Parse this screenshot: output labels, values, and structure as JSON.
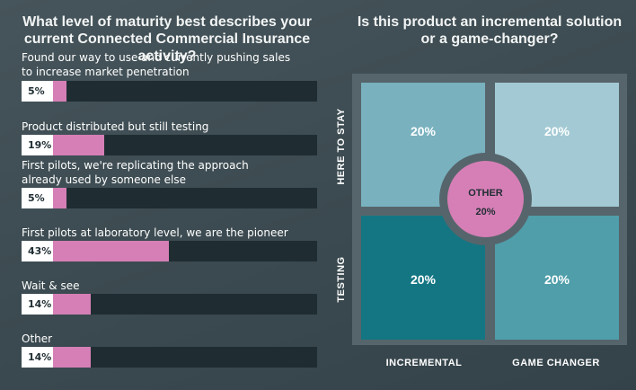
{
  "colors": {
    "background": "#3f4e54",
    "bar_fill": "#d67fb6",
    "bar_track": "#1f2d32",
    "value_box": "#ffffff",
    "quadrant_top_left": "#79b1bf",
    "quadrant_top_right": "#a3cad4",
    "quadrant_bottom_left": "#147683",
    "quadrant_bottom_right": "#4f9eaa",
    "center": "#d67fb6"
  },
  "chart_data": [
    {
      "type": "bar",
      "orientation": "horizontal",
      "title": "What level of maturity best describes your current Connected Commercial Insurance activity?",
      "categories": [
        "Found our way to use and currently pushing sales to increase market penetration",
        "Product distributed but still testing",
        "First pilots, we're replicating the approach already used by someone else",
        "First pilots at laboratory level, we are the pioneer",
        "Wait & see",
        "Other"
      ],
      "values": [
        5,
        19,
        5,
        43,
        14,
        14
      ],
      "value_labels": [
        "5%",
        "19%",
        "5%",
        "43%",
        "14%",
        "14%"
      ],
      "unit": "%",
      "xlim": [
        0,
        100
      ]
    },
    {
      "type": "table",
      "title": "Is this product an incremental solution or a game-changer?",
      "x_categories": [
        "INCREMENTAL",
        "GAME CHANGER"
      ],
      "y_categories": [
        "HERE TO STAY",
        "TESTING"
      ],
      "cells": [
        {
          "x": "INCREMENTAL",
          "y": "HERE TO STAY",
          "value": 20,
          "label": "20%"
        },
        {
          "x": "GAME CHANGER",
          "y": "HERE TO STAY",
          "value": 20,
          "label": "20%"
        },
        {
          "x": "INCREMENTAL",
          "y": "TESTING",
          "value": 20,
          "label": "20%"
        },
        {
          "x": "GAME CHANGER",
          "y": "TESTING",
          "value": 20,
          "label": "20%"
        }
      ],
      "center": {
        "label": "OTHER",
        "value": 20,
        "value_label": "20%"
      }
    }
  ]
}
